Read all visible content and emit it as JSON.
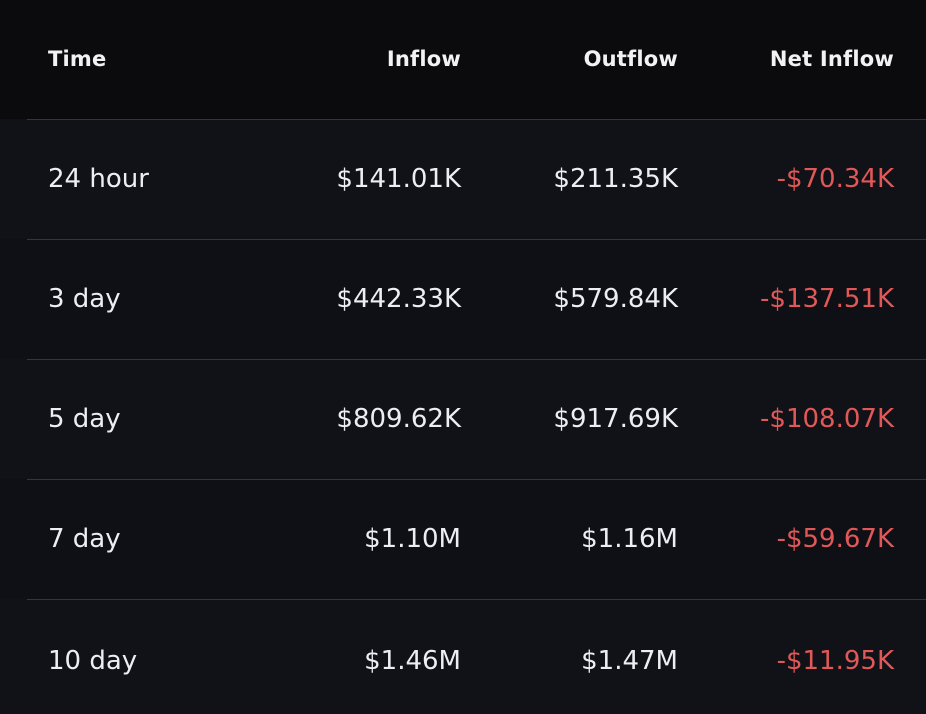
{
  "headers": {
    "time": "Time",
    "inflow": "Inflow",
    "outflow": "Outflow",
    "net_inflow": "Net Inflow"
  },
  "rows": [
    {
      "time": "24 hour",
      "inflow": "$141.01K",
      "outflow": "$211.35K",
      "net_inflow": "-$70.34K"
    },
    {
      "time": "3 day",
      "inflow": "$442.33K",
      "outflow": "$579.84K",
      "net_inflow": "-$137.51K"
    },
    {
      "time": "5 day",
      "inflow": "$809.62K",
      "outflow": "$917.69K",
      "net_inflow": "-$108.07K"
    },
    {
      "time": "7 day",
      "inflow": "$1.10M",
      "outflow": "$1.16M",
      "net_inflow": "-$59.67K"
    },
    {
      "time": "10 day",
      "inflow": "$1.46M",
      "outflow": "$1.47M",
      "net_inflow": "-$11.95K"
    }
  ],
  "colors": {
    "background": "#0f1014",
    "header_background": "#0b0b0e",
    "text": "#eeeef2",
    "negative": "#e05858",
    "divider": "#34363d"
  }
}
